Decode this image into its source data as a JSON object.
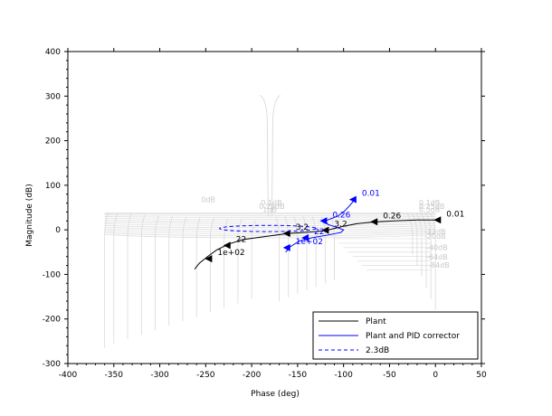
{
  "chart_data": {
    "type": "line",
    "title": "",
    "xlabel": "Phase (deg)",
    "ylabel": "Magnitude (dB)",
    "xlim": [
      -400,
      50
    ],
    "ylim": [
      -300,
      400
    ],
    "x_ticks": [
      "-400",
      "-350",
      "-300",
      "-250",
      "-200",
      "-150",
      "-100",
      "-50",
      "0",
      "50"
    ],
    "y_ticks": [
      "-300",
      "-200",
      "-100",
      "0",
      "100",
      "200",
      "300",
      "400"
    ],
    "grid": "Nichols chart (isogain contours)",
    "grid_labels": [
      {
        "text": "0dB",
        "x": -255,
        "y": 62
      },
      {
        "text": "0.1dB",
        "x": -190,
        "y": 55
      },
      {
        "text": "0.25dB",
        "x": -192,
        "y": 47
      },
      {
        "text": "1dB",
        "x": -188,
        "y": 40
      },
      {
        "text": "0.1dB",
        "x": -18,
        "y": 55
      },
      {
        "text": "0.25dB",
        "x": -18,
        "y": 47
      },
      {
        "text": "0.5dB",
        "x": -18,
        "y": 40
      },
      {
        "text": "-12dB",
        "x": -12,
        "y": -10
      },
      {
        "text": "-20dB",
        "x": -12,
        "y": -20
      },
      {
        "text": "-40dB",
        "x": -10,
        "y": -45
      },
      {
        "text": "-64dB",
        "x": -10,
        "y": -67
      },
      {
        "text": "-84dB",
        "x": -8,
        "y": -85
      }
    ],
    "series": [
      {
        "name": "Plant",
        "color": "#000000",
        "style": "solid",
        "points": [
          [
            4,
            22
          ],
          [
            -20,
            22
          ],
          [
            -45,
            20
          ],
          [
            -65,
            18
          ],
          [
            -85,
            14
          ],
          [
            -100,
            8
          ],
          [
            -110,
            3
          ],
          [
            -118,
            -1
          ],
          [
            -130,
            -4
          ],
          [
            -145,
            -6
          ],
          [
            -160,
            -8
          ],
          [
            -185,
            -15
          ],
          [
            -210,
            -22
          ],
          [
            -225,
            -32
          ],
          [
            -238,
            -45
          ],
          [
            -248,
            -60
          ],
          [
            -257,
            -75
          ],
          [
            -262,
            -88
          ]
        ],
        "freq_labels": [
          {
            "text": "0.01",
            "x": 4,
            "y": 22
          },
          {
            "text": "0.26",
            "x": -65,
            "y": 18
          },
          {
            "text": "3.2",
            "x": -118,
            "y": -1
          },
          {
            "text": "3.2",
            "x": -160,
            "y": -8
          },
          {
            "text": "22",
            "x": -225,
            "y": -35
          },
          {
            "text": "1e+02",
            "x": -245,
            "y": -65
          }
        ]
      },
      {
        "name": "Plant and PID corrector",
        "color": "#0000ff",
        "style": "solid",
        "points": [
          [
            -88,
            68
          ],
          [
            -93,
            55
          ],
          [
            -100,
            40
          ],
          [
            -107,
            30
          ],
          [
            -115,
            24
          ],
          [
            -120,
            20
          ],
          [
            -117,
            12
          ],
          [
            -108,
            6
          ],
          [
            -100,
            0
          ],
          [
            -103,
            -6
          ],
          [
            -118,
            -12
          ],
          [
            -135,
            -18
          ],
          [
            -148,
            -25
          ],
          [
            -158,
            -38
          ],
          [
            -163,
            -50
          ]
        ],
        "freq_labels": [
          {
            "text": "0.01",
            "x": -88,
            "y": 68
          },
          {
            "text": "0.26",
            "x": -120,
            "y": 20
          },
          {
            "text": "22",
            "x": -140,
            "y": -18
          },
          {
            "text": "1e+02",
            "x": -160,
            "y": -40
          }
        ]
      },
      {
        "name": "2.3dB",
        "color": "#0000ff",
        "style": "dashed",
        "ellipse": {
          "x_min": -235,
          "x_max": -130,
          "y_min": -4,
          "y_max": 10
        }
      }
    ],
    "legend": {
      "position": "bottom-right",
      "entries": [
        "Plant",
        "Plant and PID corrector",
        "2.3dB"
      ]
    }
  }
}
